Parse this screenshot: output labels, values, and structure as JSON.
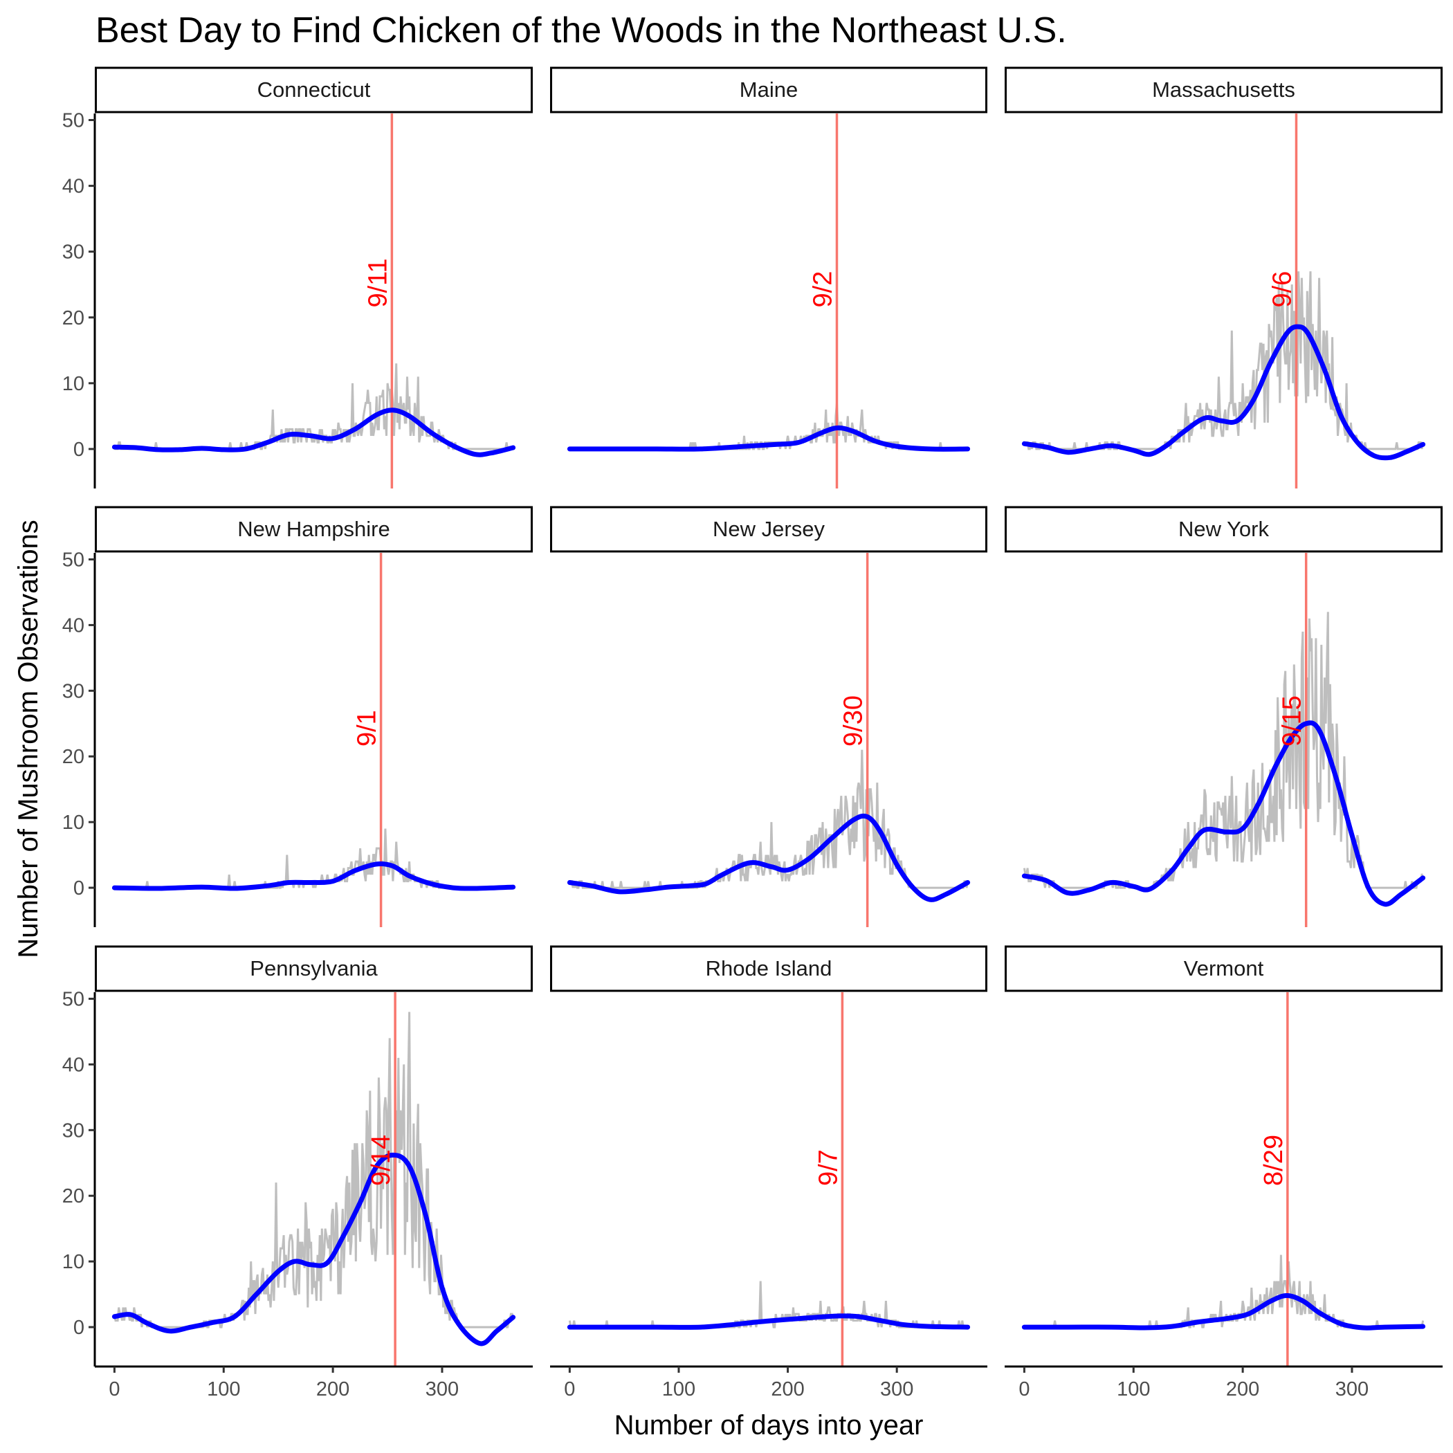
{
  "chart_data": {
    "type": "line",
    "title": "Best Day to Find Chicken of the Woods in the Northeast U.S.",
    "xlabel": "Number of days into year",
    "ylabel": "Number of Mushroom Observations",
    "xlim": [
      -18,
      383
    ],
    "ylim": [
      -6,
      51
    ],
    "x_ticks": [
      0,
      100,
      200,
      300
    ],
    "y_ticks": [
      0,
      10,
      20,
      30,
      40,
      50
    ],
    "layout": "3x3 facets, shared axes",
    "colors": {
      "raw": "#bebebe",
      "smooth": "#0000ff",
      "peak_line": "#f8766d",
      "peak_label": "#ff0000"
    },
    "grid": false,
    "facets": [
      {
        "name": "Connecticut",
        "peak_day": 254,
        "peak_label": "9/11",
        "smooth": [
          [
            0,
            0.3
          ],
          [
            20,
            0.2
          ],
          [
            40,
            -0.1
          ],
          [
            60,
            -0.1
          ],
          [
            80,
            0.1
          ],
          [
            100,
            -0.1
          ],
          [
            120,
            0
          ],
          [
            140,
            1
          ],
          [
            160,
            2.2
          ],
          [
            180,
            2
          ],
          [
            200,
            1.6
          ],
          [
            220,
            3
          ],
          [
            240,
            5.2
          ],
          [
            255,
            5.9
          ],
          [
            270,
            5
          ],
          [
            290,
            2.5
          ],
          [
            310,
            0.5
          ],
          [
            330,
            -0.8
          ],
          [
            345,
            -0.6
          ],
          [
            365,
            0.2
          ]
        ],
        "raw_peak": [
          [
            145,
            6
          ],
          [
            170,
            3
          ],
          [
            205,
            4
          ],
          [
            218,
            10
          ],
          [
            232,
            9
          ],
          [
            240,
            8
          ],
          [
            250,
            10
          ],
          [
            258,
            13
          ],
          [
            268,
            11
          ],
          [
            278,
            11
          ],
          [
            285,
            3
          ]
        ]
      },
      {
        "name": "Maine",
        "peak_day": 245,
        "peak_label": "9/2",
        "smooth": [
          [
            0,
            0
          ],
          [
            40,
            0
          ],
          [
            80,
            0
          ],
          [
            120,
            0
          ],
          [
            160,
            0.4
          ],
          [
            190,
            0.7
          ],
          [
            210,
            1
          ],
          [
            230,
            2.4
          ],
          [
            245,
            3.2
          ],
          [
            260,
            2.7
          ],
          [
            280,
            1.2
          ],
          [
            300,
            0.4
          ],
          [
            330,
            0
          ],
          [
            365,
            0
          ]
        ],
        "raw_peak": [
          [
            160,
            2
          ],
          [
            200,
            2
          ],
          [
            225,
            4
          ],
          [
            235,
            6
          ],
          [
            245,
            7
          ],
          [
            255,
            5
          ],
          [
            268,
            6
          ],
          [
            280,
            2
          ],
          [
            300,
            1
          ]
        ]
      },
      {
        "name": "Massachusetts",
        "peak_day": 249,
        "peak_label": "9/6",
        "smooth": [
          [
            0,
            0.8
          ],
          [
            20,
            0.3
          ],
          [
            40,
            -0.5
          ],
          [
            60,
            0
          ],
          [
            80,
            0.5
          ],
          [
            100,
            -0.2
          ],
          [
            115,
            -0.8
          ],
          [
            130,
            0.5
          ],
          [
            145,
            2.5
          ],
          [
            165,
            4.7
          ],
          [
            180,
            4.3
          ],
          [
            195,
            4.3
          ],
          [
            210,
            7.5
          ],
          [
            225,
            13
          ],
          [
            240,
            17.5
          ],
          [
            250,
            18.6
          ],
          [
            260,
            17.5
          ],
          [
            275,
            12
          ],
          [
            290,
            5
          ],
          [
            305,
            1
          ],
          [
            320,
            -1
          ],
          [
            335,
            -1.3
          ],
          [
            350,
            -0.4
          ],
          [
            365,
            0.7
          ]
        ],
        "raw_peak": [
          [
            148,
            7
          ],
          [
            178,
            11
          ],
          [
            190,
            18
          ],
          [
            200,
            10
          ],
          [
            213,
            12
          ],
          [
            225,
            17
          ],
          [
            237,
            20
          ],
          [
            245,
            25
          ],
          [
            252,
            22
          ],
          [
            262,
            27
          ],
          [
            270,
            26
          ],
          [
            282,
            17
          ],
          [
            295,
            10
          ]
        ]
      },
      {
        "name": "New Hampshire",
        "peak_day": 244,
        "peak_label": "9/1",
        "smooth": [
          [
            0,
            0
          ],
          [
            40,
            -0.1
          ],
          [
            80,
            0.1
          ],
          [
            110,
            -0.1
          ],
          [
            140,
            0.3
          ],
          [
            160,
            0.8
          ],
          [
            180,
            0.8
          ],
          [
            200,
            1
          ],
          [
            220,
            2.6
          ],
          [
            240,
            3.6
          ],
          [
            255,
            3.3
          ],
          [
            270,
            1.8
          ],
          [
            290,
            0.6
          ],
          [
            310,
            0
          ],
          [
            330,
            -0.1
          ],
          [
            365,
            0.1
          ]
        ],
        "raw_peak": [
          [
            105,
            2
          ],
          [
            158,
            5
          ],
          [
            190,
            2
          ],
          [
            225,
            6
          ],
          [
            240,
            6
          ],
          [
            248,
            9
          ],
          [
            258,
            7
          ],
          [
            270,
            4
          ]
        ]
      },
      {
        "name": "New Jersey",
        "peak_day": 273,
        "peak_label": "9/30",
        "smooth": [
          [
            0,
            0.8
          ],
          [
            20,
            0.3
          ],
          [
            45,
            -0.6
          ],
          [
            70,
            -0.3
          ],
          [
            90,
            0.1
          ],
          [
            110,
            0.3
          ],
          [
            125,
            0.6
          ],
          [
            140,
            2
          ],
          [
            165,
            3.8
          ],
          [
            185,
            3.2
          ],
          [
            200,
            2.7
          ],
          [
            220,
            4.5
          ],
          [
            240,
            7.5
          ],
          [
            260,
            10.3
          ],
          [
            273,
            10.8
          ],
          [
            285,
            8.5
          ],
          [
            300,
            3.5
          ],
          [
            315,
            0
          ],
          [
            330,
            -1.8
          ],
          [
            345,
            -1
          ],
          [
            365,
            0.8
          ]
        ],
        "raw_peak": [
          [
            155,
            5
          ],
          [
            175,
            7
          ],
          [
            185,
            10
          ],
          [
            222,
            8
          ],
          [
            245,
            10
          ],
          [
            262,
            13
          ],
          [
            268,
            21
          ],
          [
            275,
            15
          ],
          [
            282,
            16
          ],
          [
            290,
            8
          ]
        ]
      },
      {
        "name": "New York",
        "peak_day": 258,
        "peak_label": "9/15",
        "smooth": [
          [
            0,
            1.8
          ],
          [
            20,
            1.1
          ],
          [
            40,
            -0.8
          ],
          [
            60,
            -0.3
          ],
          [
            80,
            0.8
          ],
          [
            100,
            0.2
          ],
          [
            115,
            -0.2
          ],
          [
            135,
            2.6
          ],
          [
            150,
            6
          ],
          [
            165,
            8.8
          ],
          [
            185,
            8.5
          ],
          [
            200,
            9
          ],
          [
            215,
            13
          ],
          [
            230,
            18.5
          ],
          [
            245,
            23
          ],
          [
            258,
            25
          ],
          [
            270,
            24
          ],
          [
            285,
            17
          ],
          [
            300,
            8
          ],
          [
            315,
            0
          ],
          [
            330,
            -2.5
          ],
          [
            345,
            -1
          ],
          [
            365,
            1.5
          ]
        ],
        "raw_peak": [
          [
            150,
            10
          ],
          [
            165,
            15
          ],
          [
            180,
            12
          ],
          [
            190,
            17
          ],
          [
            210,
            18
          ],
          [
            230,
            24
          ],
          [
            245,
            28
          ],
          [
            255,
            39
          ],
          [
            262,
            36
          ],
          [
            272,
            37
          ],
          [
            278,
            42
          ],
          [
            286,
            25
          ],
          [
            295,
            12
          ]
        ]
      },
      {
        "name": "Pennsylvania",
        "peak_day": 257,
        "peak_label": "9/14",
        "smooth": [
          [
            0,
            1.6
          ],
          [
            15,
            1.9
          ],
          [
            30,
            0.6
          ],
          [
            50,
            -0.6
          ],
          [
            70,
            0
          ],
          [
            90,
            0.7
          ],
          [
            110,
            1.6
          ],
          [
            130,
            5
          ],
          [
            150,
            8.5
          ],
          [
            165,
            10
          ],
          [
            180,
            9.5
          ],
          [
            195,
            9.8
          ],
          [
            210,
            14
          ],
          [
            225,
            19
          ],
          [
            240,
            24.5
          ],
          [
            255,
            26.2
          ],
          [
            270,
            24.5
          ],
          [
            285,
            17
          ],
          [
            300,
            6
          ],
          [
            315,
            0.5
          ],
          [
            335,
            -2.5
          ],
          [
            350,
            -0.6
          ],
          [
            365,
            1.5
          ]
        ],
        "raw_peak": [
          [
            125,
            10
          ],
          [
            148,
            22
          ],
          [
            160,
            13
          ],
          [
            175,
            19
          ],
          [
            190,
            15
          ],
          [
            212,
            21
          ],
          [
            228,
            25
          ],
          [
            245,
            28
          ],
          [
            252,
            44
          ],
          [
            258,
            33
          ],
          [
            265,
            40
          ],
          [
            270,
            48
          ],
          [
            278,
            34
          ],
          [
            290,
            16
          ],
          [
            300,
            8
          ]
        ]
      },
      {
        "name": "Rhode Island",
        "peak_day": 250,
        "peak_label": "9/7",
        "smooth": [
          [
            0,
            0
          ],
          [
            40,
            0
          ],
          [
            80,
            0
          ],
          [
            120,
            0
          ],
          [
            150,
            0.4
          ],
          [
            180,
            0.9
          ],
          [
            210,
            1.3
          ],
          [
            235,
            1.6
          ],
          [
            250,
            1.7
          ],
          [
            265,
            1.6
          ],
          [
            285,
            1
          ],
          [
            305,
            0.4
          ],
          [
            330,
            0.1
          ],
          [
            365,
            0
          ]
        ],
        "raw_peak": [
          [
            0,
            1
          ],
          [
            175,
            7
          ],
          [
            205,
            3
          ],
          [
            230,
            4
          ],
          [
            250,
            3
          ],
          [
            270,
            4
          ],
          [
            290,
            4
          ]
        ]
      },
      {
        "name": "Vermont",
        "peak_day": 241,
        "peak_label": "8/29",
        "smooth": [
          [
            0,
            0
          ],
          [
            40,
            0
          ],
          [
            80,
            0
          ],
          [
            110,
            -0.1
          ],
          [
            135,
            0.1
          ],
          [
            160,
            0.8
          ],
          [
            185,
            1.3
          ],
          [
            205,
            2
          ],
          [
            225,
            3.9
          ],
          [
            240,
            4.8
          ],
          [
            255,
            4
          ],
          [
            270,
            2.2
          ],
          [
            290,
            0.5
          ],
          [
            310,
            -0.1
          ],
          [
            330,
            0
          ],
          [
            365,
            0.1
          ]
        ],
        "raw_peak": [
          [
            150,
            3
          ],
          [
            180,
            4
          ],
          [
            200,
            4
          ],
          [
            208,
            6
          ],
          [
            222,
            6
          ],
          [
            235,
            11
          ],
          [
            242,
            10
          ],
          [
            252,
            7
          ],
          [
            262,
            7
          ],
          [
            275,
            5
          ]
        ]
      }
    ]
  }
}
